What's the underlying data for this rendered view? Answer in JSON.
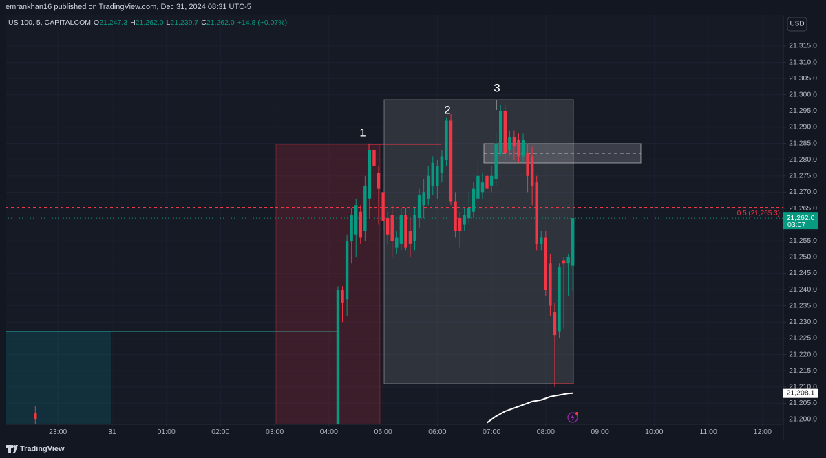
{
  "chart_data": {
    "type": "candlestick",
    "publisher_line": "emrankhan16 published on TradingView.com, Dec 31, 2024 08:31 UTC-5",
    "symbol": "US 100, 5, CAPITALCOM",
    "ohlc_header": [
      {
        "key": "O",
        "text": "21,247.3"
      },
      {
        "key": "H",
        "text": "21,262.0"
      },
      {
        "key": "L",
        "text": "21,239.7"
      },
      {
        "key": "C",
        "text": "21,262.0"
      }
    ],
    "change": "+14.8 (+0.07%)",
    "currency": "USD",
    "brand": "TradingView",
    "up_color": "#089981",
    "down_color": "#f23645",
    "grid": true,
    "x": [
      -85,
      250,
      255,
      260,
      265,
      270,
      275,
      280,
      285,
      290,
      295,
      300,
      305,
      310,
      315,
      320,
      325,
      330,
      335,
      340,
      345,
      350,
      355,
      360,
      365,
      370,
      375,
      380,
      385,
      390,
      395,
      400,
      405,
      410,
      415,
      420,
      425,
      430,
      435,
      440,
      445,
      450,
      455,
      460,
      465,
      470,
      475,
      480,
      485,
      490,
      495,
      500,
      505,
      510
    ],
    "open": [
      21202,
      21198,
      21240,
      21237,
      21255,
      21257,
      21264,
      21258,
      21268,
      21283,
      21276,
      21270,
      21262,
      21263,
      21253,
      21254,
      21263,
      21258,
      21255,
      21262,
      21266,
      21268,
      21272,
      21272,
      21276,
      21280,
      21292,
      21267,
      21262,
      21260,
      21262,
      21264,
      21268,
      21270,
      21275,
      21272,
      21274,
      21282,
      21295,
      21283,
      21287,
      21286,
      21281,
      21282,
      21281,
      21273,
      21254,
      21256,
      21248,
      21233,
      21227,
      21249,
      21248,
      21247.3
    ],
    "high": [
      21204,
      21241,
      21241,
      21257,
      21265,
      21268,
      21266,
      21275,
      21285,
      21284,
      21278,
      21271,
      21264,
      21266,
      21258,
      21265,
      21265,
      21262,
      21265,
      21271,
      21274,
      21278,
      21281,
      21280,
      21283,
      21293,
      21294,
      21270,
      21264,
      21265,
      21270,
      21273,
      21280,
      21276,
      21276,
      21278,
      21288,
      21297,
      21297,
      21289,
      21289,
      21288,
      21288,
      21285,
      21284,
      21275,
      21258,
      21258,
      21251,
      21236,
      21248,
      21250,
      21251,
      21262
    ],
    "low": [
      21198,
      21195,
      21230,
      21232,
      21248,
      21250,
      21254,
      21255,
      21262,
      21264,
      21260,
      21258,
      21254,
      21250,
      21251,
      21252,
      21252,
      21250,
      21252,
      21259,
      21262,
      21266,
      21269,
      21268,
      21273,
      21278,
      21266,
      21256,
      21253,
      21258,
      21260,
      21262,
      21266,
      21268,
      21270,
      21270,
      21272,
      21281,
      21280,
      21281,
      21280,
      21279,
      21279,
      21270,
      21266,
      21252,
      21252,
      21238,
      21232,
      21210,
      21225,
      21228,
      21238,
      21239.7
    ],
    "close": [
      21200,
      21240,
      21236,
      21255,
      21263,
      21266,
      21256,
      21272,
      21283,
      21278,
      21271,
      21261,
      21257,
      21255,
      21256,
      21263,
      21253,
      21254,
      21263,
      21269,
      21270,
      21275,
      21279,
      21278,
      21281,
      21292,
      21267,
      21258,
      21258,
      21263,
      21265,
      21271,
      21275,
      21273,
      21271,
      21275,
      21285,
      21295,
      21282,
      21287,
      21284,
      21281,
      21286,
      21275,
      21272,
      21254,
      21256,
      21240,
      21235,
      21226,
      21247,
      21248,
      21250,
      21262
    ],
    "indicator": {
      "x": [
        415,
        425,
        435,
        445,
        455,
        465,
        475,
        485,
        495,
        505,
        510
      ],
      "values": [
        21199,
        21201,
        21202.5,
        21203.5,
        21204.5,
        21205.5,
        21206,
        21207,
        21207.5,
        21208,
        21208.1
      ]
    },
    "xlim": [
      -118,
      743
    ],
    "xticks": [
      {
        "value": -60,
        "label": "23:00"
      },
      {
        "value": 0,
        "label": "31"
      },
      {
        "value": 60,
        "label": "01:00"
      },
      {
        "value": 120,
        "label": "02:00"
      },
      {
        "value": 180,
        "label": "03:00"
      },
      {
        "value": 240,
        "label": "04:00"
      },
      {
        "value": 300,
        "label": "05:00"
      },
      {
        "value": 360,
        "label": "06:00"
      },
      {
        "value": 420,
        "label": "07:00"
      },
      {
        "value": 480,
        "label": "08:00"
      },
      {
        "value": 540,
        "label": "09:00"
      },
      {
        "value": 600,
        "label": "10:00"
      },
      {
        "value": 660,
        "label": "11:00"
      },
      {
        "value": 720,
        "label": "12:00"
      }
    ],
    "ylim": [
      21198.5,
      21324.5
    ],
    "yticks": [
      {
        "value": 21200,
        "label": "21,200.0"
      },
      {
        "value": 21205,
        "label": "21,205.0"
      },
      {
        "value": 21210,
        "label": "21,210.0"
      },
      {
        "value": 21215,
        "label": "21,215.0"
      },
      {
        "value": 21220,
        "label": "21,220.0"
      },
      {
        "value": 21225,
        "label": "21,225.0"
      },
      {
        "value": 21230,
        "label": "21,230.0"
      },
      {
        "value": 21235,
        "label": "21,235.0"
      },
      {
        "value": 21240,
        "label": "21,240.0"
      },
      {
        "value": 21245,
        "label": "21,245.0"
      },
      {
        "value": 21250,
        "label": "21,250.0"
      },
      {
        "value": 21255,
        "label": "21,255.0"
      },
      {
        "value": 21265,
        "label": "21,265.0"
      },
      {
        "value": 21270,
        "label": "21,270.0"
      },
      {
        "value": 21275,
        "label": "21,275.0"
      },
      {
        "value": 21280,
        "label": "21,280.0"
      },
      {
        "value": 21285,
        "label": "21,285.0"
      },
      {
        "value": 21290,
        "label": "21,290.0"
      },
      {
        "value": 21295,
        "label": "21,295.0"
      },
      {
        "value": 21300,
        "label": "21,300.0"
      },
      {
        "value": 21305,
        "label": "21,305.0"
      },
      {
        "value": 21310,
        "label": "21,310.0"
      },
      {
        "value": 21315,
        "label": "21,315.0"
      }
    ],
    "level": {
      "value": 21265.3,
      "label": "0.5 (21,265.3)"
    },
    "last_price": {
      "value": 21262,
      "label": "21,262.0",
      "countdown": "03:07"
    },
    "indicator_tag": {
      "value": 21208.1,
      "label": "21,208.1"
    },
    "annotations": [
      "1",
      "2",
      "3"
    ]
  }
}
